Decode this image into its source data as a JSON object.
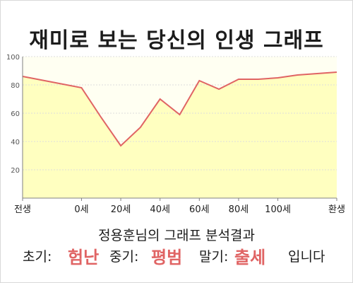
{
  "chart_data": {
    "type": "area",
    "title": "재미로 보는 당신의 인생 그래프",
    "categories": [
      "전생",
      "0세",
      "20세",
      "40세",
      "60세",
      "80세",
      "100세",
      "환생"
    ],
    "x_positions": [
      -30,
      0,
      20,
      40,
      60,
      80,
      100,
      130
    ],
    "x": [
      -30,
      0,
      10,
      20,
      30,
      40,
      50,
      60,
      70,
      80,
      90,
      100,
      110,
      130
    ],
    "values": [
      86,
      78,
      57,
      37,
      50,
      70,
      59,
      83,
      77,
      84,
      84,
      85,
      87,
      89
    ],
    "ylim": [
      0,
      100
    ],
    "yticks": [
      20,
      40,
      60,
      80,
      100
    ],
    "grid": true,
    "line_color": "#e06464",
    "fill_color": "#ffffc0"
  },
  "subtitle": "정용훈님의 그래프 분석결과",
  "result": {
    "early_label": "초기:",
    "early_value": "험난",
    "middle_label": "중기:",
    "middle_value": "평범",
    "late_label": "말기:",
    "late_value": "출세",
    "ending": "입니다"
  }
}
